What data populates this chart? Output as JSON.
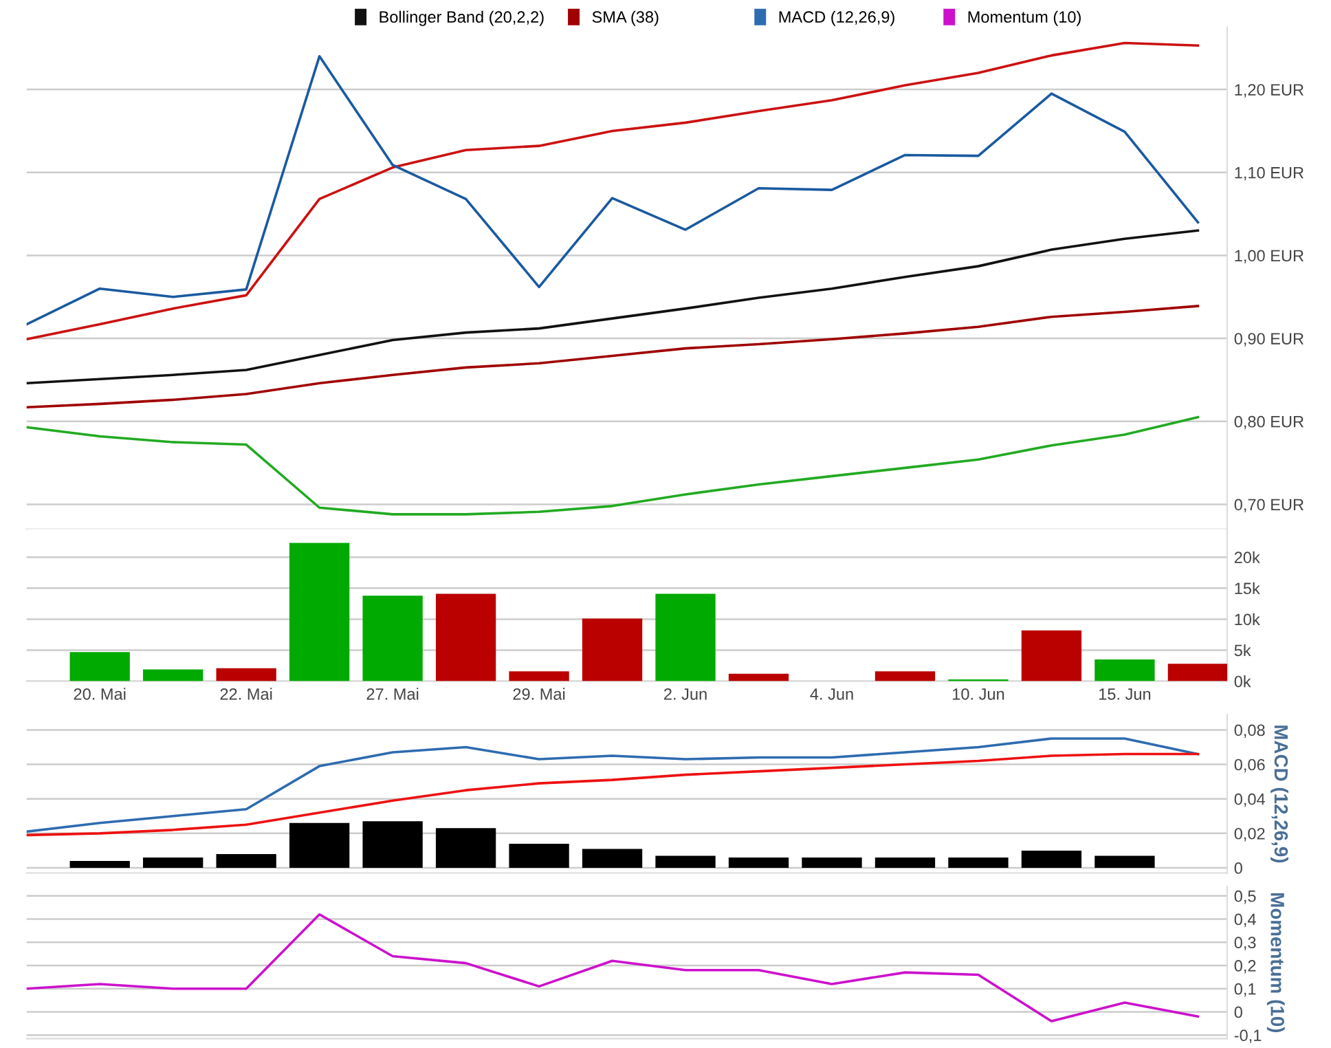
{
  "chart_data": [
    {
      "type": "line",
      "categories": [
        null,
        null,
        null,
        null,
        null,
        null,
        null,
        null,
        null,
        null,
        null,
        null,
        null,
        null,
        null,
        null,
        null
      ],
      "grid": "y",
      "legend": "top left",
      "ylim": [
        0.67,
        1.275
      ],
      "yticks": [
        {
          "value": 0.7,
          "label": "0,70 EUR"
        },
        {
          "value": 0.8,
          "label": "0,80 EUR"
        },
        {
          "value": 0.9,
          "label": "0,90 EUR"
        },
        {
          "value": 1.0,
          "label": "1,00 EUR"
        },
        {
          "value": 1.1,
          "label": "1,10 EUR"
        },
        {
          "value": 1.2,
          "label": "1,20 EUR"
        }
      ],
      "series": [
        {
          "color": "#cc1111",
          "values": [
            0.899,
            0.917,
            0.936,
            0.952,
            1.068,
            1.106,
            1.127,
            1.132,
            1.15,
            1.16,
            1.174,
            1.187,
            1.205,
            1.22,
            1.241,
            1.256,
            1.253
          ]
        },
        {
          "name": "Bollinger Band (20,2,2)",
          "color": "#111111",
          "values": [
            0.846,
            0.851,
            0.856,
            0.862,
            0.88,
            0.898,
            0.907,
            0.912,
            0.924,
            0.936,
            0.949,
            0.96,
            0.974,
            0.987,
            1.007,
            1.02,
            1.03
          ]
        },
        {
          "color": "#22aa22",
          "values": [
            0.793,
            0.782,
            0.775,
            0.772,
            0.696,
            0.688,
            0.688,
            0.691,
            0.698,
            0.712,
            0.724,
            0.734,
            0.744,
            0.754,
            0.771,
            0.784,
            0.805
          ]
        },
        {
          "name": "SMA (38)",
          "color": "#a00000",
          "values": [
            0.817,
            0.821,
            0.826,
            0.833,
            0.846,
            0.856,
            0.865,
            0.87,
            0.879,
            0.888,
            0.893,
            0.899,
            0.906,
            0.914,
            0.926,
            0.932,
            0.939
          ]
        },
        {
          "color": "#1a5aa0",
          "values": [
            0.917,
            0.96,
            0.95,
            0.959,
            1.24,
            1.109,
            1.068,
            0.962,
            1.069,
            1.031,
            1.081,
            1.079,
            1.121,
            1.12,
            1.195,
            1.149,
            1.04
          ]
        }
      ]
    },
    {
      "type": "bar",
      "categories": [
        null,
        "20. Mai",
        null,
        "22. Mai",
        null,
        "27. Mai",
        null,
        "29. Mai",
        null,
        "2. Jun",
        null,
        "4. Jun",
        null,
        "10. Jun",
        null,
        "15. Jun",
        null
      ],
      "grid": "y",
      "ylim": [
        0,
        24500
      ],
      "yticks": [
        {
          "value": 0,
          "label": "0k"
        },
        {
          "value": 5000,
          "label": "5k"
        },
        {
          "value": 10000,
          "label": "10k"
        },
        {
          "value": 15000,
          "label": "15k"
        },
        {
          "value": 20000,
          "label": "20k"
        }
      ],
      "values": [
        null,
        4700,
        1900,
        2100,
        22300,
        13800,
        14100,
        1600,
        10100,
        14100,
        1200,
        null,
        1600,
        300,
        8200,
        3500,
        2800
      ],
      "colors": [
        "#00aa00",
        "#00aa00",
        "#00aa00",
        "#bb0000",
        "#00aa00",
        "#00aa00",
        "#bb0000",
        "#bb0000",
        "#bb0000",
        "#00aa00",
        "#bb0000",
        "#bb0000",
        "#bb0000",
        "#00aa00",
        "#bb0000",
        "#00aa00",
        "#bb0000"
      ]
    },
    {
      "type": "line",
      "categories": [
        null,
        null,
        null,
        null,
        null,
        null,
        null,
        null,
        null,
        null,
        null,
        null,
        null,
        null,
        null,
        null,
        null
      ],
      "grid": "y",
      "legend": "top right",
      "ylabel": "MACD (12,26,9)",
      "ylim": [
        -0.003,
        0.0888
      ],
      "yticks": [
        0,
        {
          "value": 0.02,
          "label": "0,02"
        },
        {
          "value": 0.04,
          "label": "0,04"
        },
        {
          "value": 0.06,
          "label": "0,06"
        },
        {
          "value": 0.08,
          "label": "0,08"
        }
      ],
      "series": [
        {
          "type": "bar",
          "color": "#000000",
          "values": [
            null,
            0.004,
            0.006,
            0.008,
            0.026,
            0.027,
            0.023,
            0.014,
            0.011,
            0.007,
            0.006,
            0.006,
            0.006,
            0.006,
            0.01,
            0.007,
            null
          ]
        },
        {
          "name": "MACD (12,26,9)",
          "color": "#2e6bb0",
          "values": [
            0.021,
            0.026,
            0.03,
            0.034,
            0.059,
            0.067,
            0.07,
            0.063,
            0.065,
            0.063,
            0.064,
            0.064,
            0.067,
            0.07,
            0.075,
            0.075,
            0.066
          ]
        },
        {
          "color": "#ee1111",
          "values": [
            0.019,
            0.02,
            0.022,
            0.025,
            0.032,
            0.039,
            0.045,
            0.049,
            0.051,
            0.054,
            0.056,
            0.058,
            0.06,
            0.062,
            0.065,
            0.066,
            0.066
          ]
        }
      ]
    },
    {
      "type": "line",
      "categories": [
        null,
        null,
        null,
        null,
        null,
        null,
        null,
        null,
        null,
        null,
        null,
        null,
        null,
        null,
        null,
        null,
        null
      ],
      "grid": "y",
      "legend": "top right",
      "ylabel": "Momentum (10)",
      "ylim": [
        -0.115,
        0.54
      ],
      "yticks": [
        {
          "value": -0.1,
          "label": "-0,1"
        },
        0,
        {
          "value": 0.1,
          "label": "0,1"
        },
        {
          "value": 0.2,
          "label": "0,2"
        },
        {
          "value": 0.3,
          "label": "0,3"
        },
        {
          "value": 0.4,
          "label": "0,4"
        },
        {
          "value": 0.5,
          "label": "0,5"
        }
      ],
      "series": [
        {
          "name": "Momentum (10)",
          "color": "#cc11cc",
          "values": [
            0.1,
            0.12,
            0.1,
            0.1,
            0.42,
            0.24,
            0.21,
            0.11,
            0.22,
            0.18,
            0.18,
            0.12,
            0.17,
            0.16,
            -0.04,
            0.04,
            -0.02
          ]
        }
      ]
    }
  ]
}
